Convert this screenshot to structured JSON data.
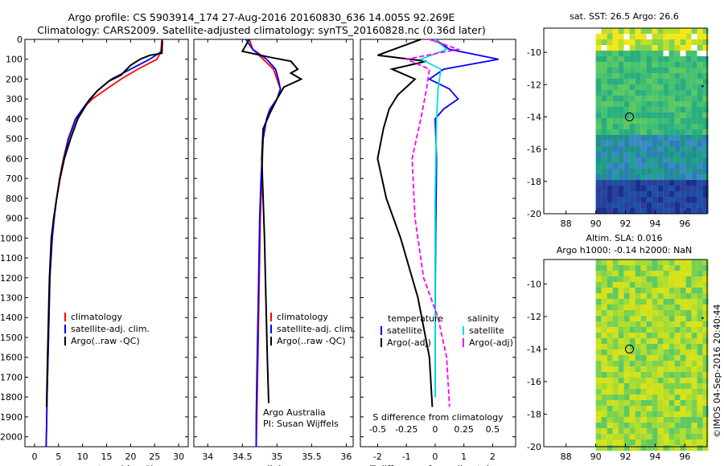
{
  "header": {
    "line1": "Argo profile: CS 5903914_174 27-Aug-2016 20160830_636 14.005S 92.269E",
    "line2": "Climatology: CARS2009. Satellite-adjusted climatology: synTS_20160828.nc (0.36d later)"
  },
  "map_sst": {
    "title": "sat. SST: 26.5 Argo: 26.6",
    "xticks": [
      "88",
      "90",
      "92",
      "94",
      "96"
    ],
    "yticks": [
      "-10",
      "-12",
      "-14",
      "-16",
      "-18",
      "-20"
    ]
  },
  "map_sla": {
    "title1": "Altim. SLA: 0.016",
    "title2": "Argo h1000: -0.14 h2000: NaN",
    "xticks": [
      "88",
      "90",
      "92",
      "94",
      "96"
    ],
    "yticks": [
      "-10",
      "-12",
      "-14",
      "-16",
      "-18",
      "-20"
    ]
  },
  "stamp": "©IMOS 04-Sep-2016 20:40:44",
  "colors": {
    "climatology": "#ff0000",
    "satellite": "#0000ff",
    "argo": "#000000",
    "sal_sat": "#00e0e0",
    "sal_argo": "#ff00ff"
  },
  "chart_data": [
    {
      "type": "line",
      "xlabel": "temperature (deg C)",
      "ylabel": "",
      "xlim": [
        -2,
        32
      ],
      "ylim": [
        2050,
        0
      ],
      "xticks": [
        "0",
        "5",
        "10",
        "15",
        "20",
        "25",
        "30"
      ],
      "yticks": [
        "0",
        "100",
        "200",
        "300",
        "400",
        "500",
        "600",
        "700",
        "800",
        "900",
        "1000",
        "1100",
        "1200",
        "1300",
        "1400",
        "1500",
        "1600",
        "1700",
        "1800",
        "1900",
        "2000"
      ],
      "legend": [
        "climatology",
        "satellite-adj. clim.",
        "Argo(..raw -QC)"
      ],
      "series": [
        {
          "name": "climatology",
          "color": "#ff0000",
          "x": [
            26.5,
            26.3,
            25.5,
            21.5,
            18,
            15,
            12,
            10,
            8.5,
            7,
            6,
            5.2,
            4.6,
            4.0,
            3.6,
            3.2,
            3.0,
            2.8,
            2.6,
            2.5,
            2.4
          ],
          "y": [
            0,
            60,
            100,
            150,
            200,
            250,
            300,
            350,
            400,
            500,
            600,
            700,
            800,
            900,
            1000,
            1200,
            1400,
            1600,
            1800,
            1950,
            2050
          ]
        },
        {
          "name": "satellite-adj. clim.",
          "color": "#0000ff",
          "x": [
            26.6,
            26.5,
            24,
            20,
            16,
            13.5,
            11.5,
            10,
            8.6,
            7.1,
            6.1,
            5.3,
            4.6,
            4.1,
            3.7,
            3.2,
            3.0,
            2.8,
            2.6,
            2.5,
            2.4
          ],
          "y": [
            0,
            60,
            100,
            150,
            200,
            250,
            300,
            350,
            400,
            500,
            600,
            700,
            800,
            900,
            1000,
            1200,
            1400,
            1600,
            1800,
            1950,
            2050
          ]
        },
        {
          "name": "Argo(..raw -QC)",
          "color": "#000000",
          "x": [
            26.6,
            26.5,
            24,
            22,
            20,
            18,
            15.5,
            13,
            11,
            9,
            7.5,
            6.2,
            5.3,
            4.6,
            4.0,
            3.5,
            3.1,
            2.9,
            2.7,
            2.5
          ],
          "y": [
            10,
            70,
            80,
            100,
            130,
            180,
            210,
            260,
            320,
            400,
            500,
            600,
            700,
            800,
            900,
            1000,
            1200,
            1400,
            1600,
            1850
          ]
        }
      ]
    },
    {
      "type": "line",
      "xlabel": "salinity",
      "ylabel": "",
      "xlim": [
        33.8,
        36.1
      ],
      "ylim": [
        2050,
        0
      ],
      "xticks": [
        "34",
        "34.5",
        "35",
        "35.5",
        "36"
      ],
      "legend": [
        "climatology",
        "satellite-adj. clim.",
        "Argo(..raw -QC)"
      ],
      "annotation": [
        "Argo Australia",
        "PI: Susan Wijffels"
      ],
      "series": [
        {
          "name": "climatology",
          "color": "#ff0000",
          "x": [
            34.6,
            34.65,
            34.8,
            34.95,
            35.0,
            35.05,
            35.0,
            34.9,
            34.85,
            34.8,
            34.78,
            34.76,
            34.75,
            34.74,
            34.73,
            34.72,
            34.71,
            34.7
          ],
          "y": [
            0,
            50,
            100,
            150,
            200,
            250,
            300,
            350,
            400,
            500,
            700,
            900,
            1100,
            1300,
            1500,
            1700,
            1900,
            2050
          ]
        },
        {
          "name": "satellite-adj. clim.",
          "color": "#0000ff",
          "x": [
            34.55,
            34.65,
            34.85,
            34.98,
            35.02,
            35.05,
            35.0,
            34.9,
            34.85,
            34.8,
            34.77,
            34.75,
            34.74,
            34.73,
            34.72,
            34.71,
            34.7,
            34.7
          ],
          "y": [
            0,
            50,
            100,
            150,
            200,
            250,
            300,
            350,
            400,
            500,
            700,
            900,
            1100,
            1300,
            1500,
            1700,
            1900,
            2050
          ]
        },
        {
          "name": "Argo(..raw -QC)",
          "color": "#000000",
          "x": [
            34.6,
            34.5,
            34.9,
            35.2,
            35.3,
            35.2,
            35.35,
            35.1,
            35.0,
            34.9,
            34.8,
            34.78,
            34.8,
            34.82,
            34.84,
            34.86,
            34.88
          ],
          "y": [
            0,
            60,
            90,
            110,
            150,
            170,
            200,
            240,
            300,
            370,
            450,
            600,
            800,
            1000,
            1300,
            1600,
            1830
          ]
        }
      ]
    },
    {
      "type": "line",
      "xlabel": "T difference from climatology",
      "xlabel_top": "S difference from climatology",
      "xlim": [
        -2.6,
        2.8
      ],
      "ylim": [
        2050,
        0
      ],
      "xticks": [
        "-2",
        "-1",
        "0",
        "1",
        "2"
      ],
      "xticks_top": [
        "-0.5",
        "-0.25",
        "0",
        "0.25",
        "0.5"
      ],
      "legend_titles": [
        "temperature",
        "salinity"
      ],
      "legend": [
        "satellite",
        "Argo(-adj)",
        "satellite",
        "Argo(-adj)"
      ],
      "series": [
        {
          "name": "satellite",
          "color": "#0000ff",
          "x": [
            0,
            0.5,
            2.2,
            0.3,
            -0.2,
            0.5,
            0.8,
            0.3,
            0.0,
            0.05,
            0.02,
            0.0,
            0.0
          ],
          "y": [
            0,
            50,
            100,
            150,
            200,
            250,
            300,
            350,
            400,
            600,
            1000,
            1400,
            1800
          ]
        },
        {
          "name": "Argo(-adj)",
          "color": "#000000",
          "x": [
            -0.5,
            -2.0,
            -0.3,
            -1.5,
            -0.7,
            -1.3,
            -1.6,
            -1.8,
            -2.0,
            -1.7,
            -1.2,
            -0.6,
            -0.2,
            -0.1
          ],
          "y": [
            0,
            80,
            110,
            150,
            200,
            280,
            350,
            450,
            600,
            800,
            1000,
            1300,
            1600,
            1850
          ]
        },
        {
          "name": "satellite (S)",
          "color": "#00e0e0",
          "x": [
            0.0,
            0.4,
            -0.5,
            0.2,
            0.1,
            0.05,
            0.0,
            0.0,
            0.0
          ],
          "y": [
            0,
            50,
            100,
            150,
            250,
            400,
            800,
            1400,
            1800
          ]
        },
        {
          "name": "Argo(-adj) (S)",
          "color": "#ff00ff",
          "x": [
            -0.2,
            0.8,
            -1.0,
            -0.2,
            -0.3,
            -0.5,
            -0.8,
            -0.7,
            -0.4,
            0.1,
            0.4,
            0.5
          ],
          "y": [
            0,
            50,
            100,
            150,
            250,
            400,
            600,
            900,
            1200,
            1400,
            1600,
            1850
          ]
        }
      ]
    }
  ]
}
